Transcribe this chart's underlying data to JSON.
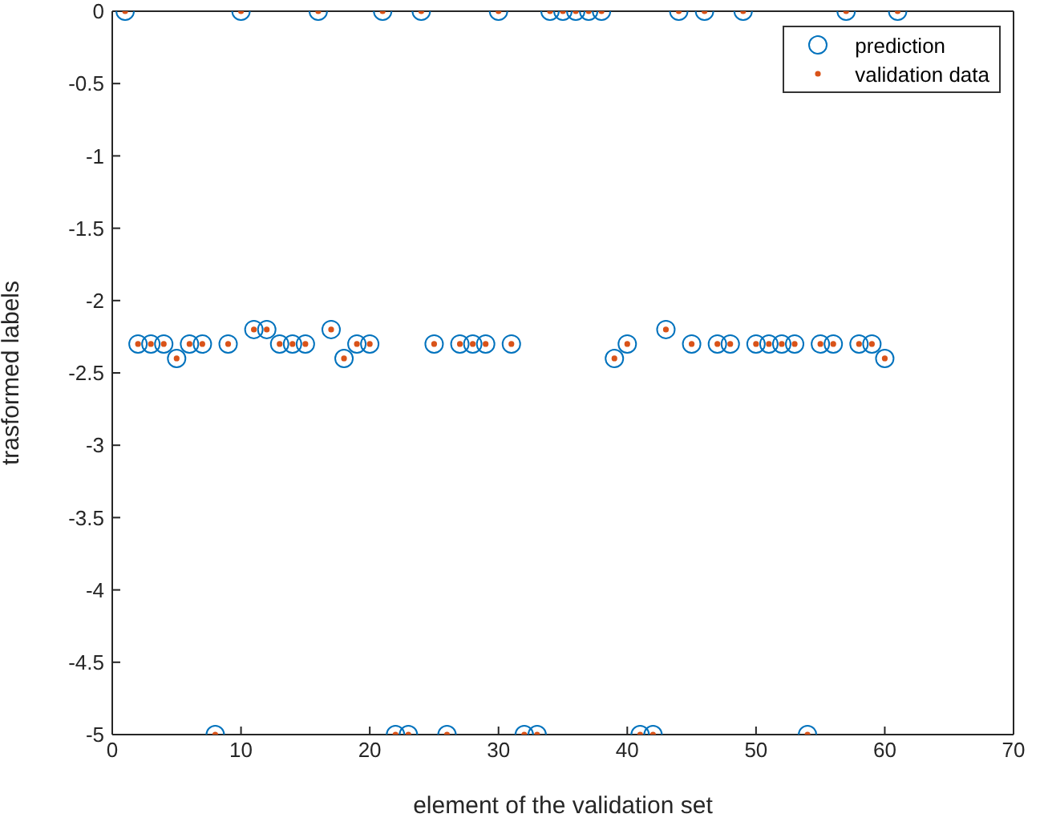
{
  "chart_data": {
    "type": "scatter",
    "xlabel": "element of the validation set",
    "ylabel": "trasformed labels",
    "x": [
      1,
      2,
      3,
      4,
      5,
      6,
      7,
      8,
      9,
      10,
      11,
      12,
      13,
      14,
      15,
      16,
      17,
      18,
      19,
      20,
      21,
      22,
      23,
      24,
      25,
      26,
      27,
      28,
      29,
      30,
      31,
      32,
      33,
      34,
      35,
      36,
      37,
      38,
      39,
      40,
      41,
      42,
      43,
      44,
      45,
      46,
      47,
      48,
      49,
      50,
      51,
      52,
      53,
      54,
      55,
      56,
      57,
      58,
      59,
      60,
      61
    ],
    "series": [
      {
        "name": "prediction",
        "color": "#0072bd",
        "marker": "circle",
        "values": [
          0,
          -2.3,
          -2.3,
          -2.3,
          -2.4,
          -2.3,
          -2.3,
          -5,
          -2.3,
          0,
          -2.2,
          -2.2,
          -2.3,
          -2.3,
          -2.3,
          0,
          -2.2,
          -2.4,
          -2.3,
          -2.3,
          0,
          -5,
          -5,
          0,
          -2.3,
          -5,
          -2.3,
          -2.3,
          -2.3,
          0,
          -2.3,
          -5,
          -5,
          0,
          0,
          0,
          0,
          0,
          -2.4,
          -2.3,
          -5,
          -5,
          -2.2,
          0,
          -2.3,
          0,
          -2.3,
          -2.3,
          0,
          -2.3,
          -2.3,
          -2.3,
          -2.3,
          -5,
          -2.3,
          -2.3,
          0,
          -2.3,
          -2.3,
          -2.4,
          0
        ]
      },
      {
        "name": "validation data",
        "color": "#d95319",
        "marker": "dot",
        "values": [
          0,
          -2.3,
          -2.3,
          -2.3,
          -2.4,
          -2.3,
          -2.3,
          -5,
          -2.3,
          0,
          -2.2,
          -2.2,
          -2.3,
          -2.3,
          -2.3,
          0,
          -2.2,
          -2.4,
          -2.3,
          -2.3,
          0,
          -5,
          -5,
          0,
          -2.3,
          -5,
          -2.3,
          -2.3,
          -2.3,
          0,
          -2.3,
          -5,
          -5,
          0,
          0,
          0,
          0,
          0,
          -2.4,
          -2.3,
          -5,
          -5,
          -2.2,
          0,
          -2.3,
          0,
          -2.3,
          -2.3,
          0,
          -2.3,
          -2.3,
          -2.3,
          -2.3,
          -5,
          -2.3,
          -2.3,
          0,
          -2.3,
          -2.3,
          -2.4,
          0
        ]
      }
    ],
    "xlim": [
      0,
      70
    ],
    "xticks": [
      0,
      10,
      20,
      30,
      40,
      50,
      60,
      70
    ],
    "ylim": [
      -5,
      0
    ],
    "yticks": [
      {
        "value": -5,
        "label": "-5"
      },
      {
        "value": -4.5,
        "label": "-4.5"
      },
      {
        "value": -4,
        "label": "-4"
      },
      {
        "value": -3.5,
        "label": "-3.5"
      },
      {
        "value": -3,
        "label": "-3"
      },
      {
        "value": -2.5,
        "label": "-2.5"
      },
      {
        "value": -2,
        "label": "-2"
      },
      {
        "value": -1.5,
        "label": "-1.5"
      },
      {
        "value": -1,
        "label": "-1"
      },
      {
        "value": -0.5,
        "label": "-0.5"
      },
      {
        "value": 0,
        "label": "0"
      }
    ],
    "grid": false,
    "legend": "top right"
  }
}
